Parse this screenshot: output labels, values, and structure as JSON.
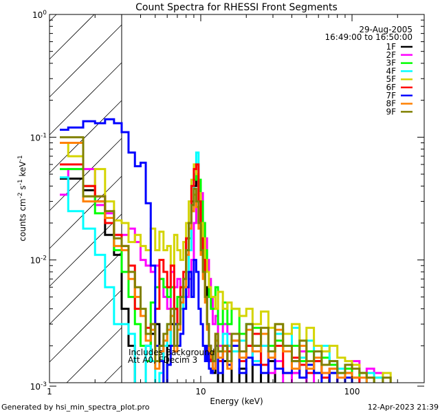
{
  "chart_data": {
    "type": "line",
    "title": "Count Spectra for RHESSI Front Segments",
    "xlabel": "Energy (keV)",
    "ylabel": {
      "base": "counts cm",
      "e1": "-2",
      "mid": " s",
      "e2": "-1",
      "unit": " keV",
      "e3": "-1"
    },
    "xscale": "log",
    "yscale": "log",
    "xlim": [
      1,
      300
    ],
    "ylim": [
      0.001,
      1
    ],
    "x_ticks": [
      {
        "value": 1,
        "label": "1"
      },
      {
        "value": 10,
        "label": "10"
      },
      {
        "value": 100,
        "label": "100"
      }
    ],
    "y_ticks": [
      {
        "value": 1,
        "base": "10",
        "exp": "0"
      },
      {
        "value": 0.1,
        "base": "10",
        "exp": "-1"
      },
      {
        "value": 0.01,
        "base": "10",
        "exp": "-2"
      },
      {
        "value": 0.001,
        "base": "10",
        "exp": "-3"
      }
    ],
    "hatched_region_keV": [
      1,
      3
    ],
    "date": "29-Aug-2005",
    "time_range": "16:49:00 to 16:50:00",
    "annotations": [
      "Includes Background",
      "Att A0, FDecim 3"
    ],
    "legend_placement": "top-right",
    "energy_edges": [
      1.17,
      1.33,
      1.67,
      2,
      2.33,
      2.67,
      3,
      3.33,
      3.67,
      4,
      4.33,
      4.67,
      5,
      5.33,
      5.67,
      6,
      6.33,
      6.67,
      7,
      7.33,
      7.67,
      8,
      8.33,
      8.67,
      9,
      9.33,
      9.67,
      10,
      10.33,
      10.67,
      11,
      11.33,
      11.67,
      12,
      12.5,
      13,
      14,
      15,
      16,
      18,
      20,
      22,
      25,
      28,
      31,
      35,
      40,
      45,
      50,
      56,
      63,
      71,
      80,
      90,
      100,
      112,
      125,
      140,
      160,
      180,
      200
    ],
    "series": [
      {
        "name": "1F",
        "color": "#000000",
        "values": [
          0.046,
          0.046,
          0.037,
          0.03,
          0.016,
          0.011,
          0.004,
          0.002,
          0,
          0.001,
          0.002,
          0.0025,
          0.003,
          0.002,
          0.001,
          0.002,
          0.003,
          0.004,
          0.003,
          0.005,
          0.007,
          0.015,
          0.02,
          0.03,
          0.04,
          0.05,
          0.04,
          0.02,
          0.01,
          0.006,
          0.003,
          0.002,
          0.0015,
          0.0012,
          0.002,
          0.001,
          0.0015,
          0.002,
          0.001,
          0.0013,
          0,
          0.002,
          0.001,
          0.0015,
          0.001,
          0,
          0.0012,
          0.0018,
          0,
          0.001,
          0,
          0.0012,
          0,
          0.001,
          0,
          0,
          0,
          0,
          0,
          0
        ]
      },
      {
        "name": "2F",
        "color": "#ff00ff",
        "values": [
          0.034,
          0.055,
          0.055,
          0.028,
          0.024,
          0.016,
          0.016,
          0.018,
          0.014,
          0.01,
          0.009,
          0.008,
          0.009,
          0.007,
          0.005,
          0.004,
          0.008,
          0.006,
          0.007,
          0.006,
          0.005,
          0.005,
          0.007,
          0.01,
          0.02,
          0.03,
          0.04,
          0.035,
          0.02,
          0.015,
          0.01,
          0.007,
          0.005,
          0.003,
          0.0035,
          0.002,
          0.003,
          0.0025,
          0.002,
          0.0018,
          0.002,
          0.0015,
          0.002,
          0.0012,
          0.0015,
          0.001,
          0.0012,
          0.0018,
          0.001,
          0.0015,
          0.0012,
          0.0013,
          0.001,
          0.0012,
          0.0015,
          0.001,
          0.0013,
          0.0012,
          0.001,
          0
        ]
      },
      {
        "name": "3F",
        "color": "#00ff00",
        "values": [
          0.055,
          0.055,
          0.04,
          0.024,
          0.02,
          0.012,
          0.008,
          0.005,
          0.003,
          0.002,
          0.0015,
          0.0045,
          0.006,
          0.007,
          0.006,
          0.005,
          0.006,
          0.004,
          0.005,
          0.004,
          0.006,
          0.008,
          0.015,
          0.025,
          0.045,
          0.05,
          0.045,
          0.03,
          0.02,
          0.012,
          0.008,
          0.005,
          0.004,
          0.004,
          0.006,
          0.003,
          0.0045,
          0.003,
          0.004,
          0.0025,
          0.003,
          0.0028,
          0.0025,
          0.002,
          0.0022,
          0.0018,
          0.002,
          0.0015,
          0.0018,
          0.0012,
          0.0016,
          0.0014,
          0.0012,
          0.0013,
          0.0011,
          0.0012,
          0.001,
          0.0011,
          0.001,
          0
        ]
      },
      {
        "name": "4F",
        "color": "#00ffff",
        "values": [
          0.047,
          0.025,
          0.018,
          0.011,
          0.006,
          0.003,
          0.003,
          0.0025,
          0,
          0.001,
          0.002,
          0.0015,
          0.001,
          0.0012,
          0.002,
          0.003,
          0.002,
          0.003,
          0.003,
          0.004,
          0.005,
          0.008,
          0.012,
          0.025,
          0.05,
          0.075,
          0.035,
          0.015,
          0.008,
          0.005,
          0.003,
          0.002,
          0.0015,
          0.0018,
          0.002,
          0.0015,
          0.0025,
          0.002,
          0.0018,
          0.0022,
          0.003,
          0.0015,
          0.002,
          0.0018,
          0.0025,
          0.002,
          0.0028,
          0.0016,
          0.0022,
          0.0015,
          0.002,
          0.0015,
          0.0013,
          0.0012,
          0.0011,
          0.001,
          0.0012,
          0.0011,
          0.001,
          0
        ]
      },
      {
        "name": "5F",
        "color": "#d4d400",
        "values": [
          0.09,
          0.07,
          0.033,
          0.055,
          0.03,
          0.021,
          0.02,
          0.014,
          0.016,
          0.013,
          0.012,
          0.018,
          0.012,
          0.017,
          0.012,
          0.013,
          0.009,
          0.016,
          0.012,
          0.01,
          0.014,
          0.02,
          0.03,
          0.045,
          0.06,
          0.05,
          0.035,
          0.02,
          0.015,
          0.01,
          0.008,
          0.006,
          0.005,
          0.005,
          0.004,
          0.0055,
          0.004,
          0.0045,
          0.004,
          0.0035,
          0.004,
          0.003,
          0.0038,
          0.0028,
          0.003,
          0.0025,
          0.003,
          0.0022,
          0.0028,
          0.002,
          0.0018,
          0.002,
          0.0016,
          0.0015,
          0.0014,
          0.0012,
          0.0011,
          0.001,
          0.0012,
          0
        ]
      },
      {
        "name": "6F",
        "color": "#ff0000",
        "values": [
          0.06,
          0.06,
          0.04,
          0.033,
          0.02,
          0.016,
          0.013,
          0.009,
          0.004,
          0.0035,
          0.0028,
          0.003,
          0.004,
          0.01,
          0.008,
          0.006,
          0.009,
          0.004,
          0.003,
          0.006,
          0.008,
          0.015,
          0.02,
          0.04,
          0.055,
          0.06,
          0.03,
          0.015,
          0.01,
          0.005,
          0.003,
          0.002,
          0.0015,
          0.0018,
          0.0025,
          0.0015,
          0.002,
          0.0018,
          0.0022,
          0.0015,
          0.002,
          0.0025,
          0.0014,
          0.0018,
          0.002,
          0.0012,
          0.0016,
          0.0014,
          0.0012,
          0.0015,
          0.0011,
          0.0013,
          0.001,
          0.0012,
          0.0011,
          0.001,
          0,
          0,
          0,
          0
        ]
      },
      {
        "name": "7F",
        "color": "#0000ff",
        "values": [
          0.115,
          0.12,
          0.135,
          0.13,
          0.14,
          0.13,
          0.11,
          0.075,
          0.058,
          0.062,
          0.029,
          0.009,
          0.002,
          0.0015,
          0,
          0.0014,
          0.002,
          0.003,
          0.002,
          0.0025,
          0.004,
          0.006,
          0.008,
          0.005,
          0.01,
          0.008,
          0.004,
          0.003,
          0.002,
          0.0015,
          0.002,
          0.0013,
          0.0012,
          0.0015,
          0.002,
          0.0012,
          0.0018,
          0.0014,
          0.002,
          0.0012,
          0.0016,
          0.0014,
          0.0012,
          0.0018,
          0.0013,
          0.0012,
          0.0015,
          0.0011,
          0.0014,
          0.0012,
          0.001,
          0.0012,
          0.001,
          0.0011,
          0,
          0,
          0,
          0,
          0,
          0
        ]
      },
      {
        "name": "8F",
        "color": "#ff8000",
        "values": [
          0.09,
          0.09,
          0.03,
          0.03,
          0.022,
          0.013,
          0.012,
          0.007,
          0.005,
          0.0035,
          0.0022,
          0.0027,
          0.0013,
          0.0018,
          0.0022,
          0.0027,
          0.0035,
          0.0018,
          0.0027,
          0.0045,
          0.006,
          0.011,
          0.018,
          0.025,
          0.034,
          0.027,
          0.018,
          0.011,
          0.007,
          0.0045,
          0.0027,
          0.0018,
          0.0016,
          0.0013,
          0.0022,
          0.0016,
          0.0018,
          0.0013,
          0.0022,
          0.0016,
          0.0027,
          0.0018,
          0.0025,
          0.0016,
          0.0027,
          0.0018,
          0.0013,
          0.002,
          0.0013,
          0.0016,
          0.0012,
          0.0013,
          0.0011,
          0.0012,
          0.0011,
          0.0011,
          0.001,
          0,
          0,
          0
        ]
      },
      {
        "name": "9F",
        "color": "#808000",
        "values": [
          0.1,
          0.1,
          0.033,
          0.033,
          0.025,
          0.015,
          0.013,
          0.008,
          0.006,
          0.004,
          0.0025,
          0.003,
          0.0015,
          0.002,
          0.0025,
          0.003,
          0.004,
          0.002,
          0.003,
          0.005,
          0.007,
          0.012,
          0.02,
          0.028,
          0.038,
          0.03,
          0.02,
          0.012,
          0.008,
          0.005,
          0.003,
          0.002,
          0.0018,
          0.0015,
          0.0025,
          0.0018,
          0.002,
          0.0015,
          0.0025,
          0.0018,
          0.003,
          0.002,
          0.0028,
          0.0018,
          0.003,
          0.002,
          0.0015,
          0.0022,
          0.0015,
          0.0018,
          0.0014,
          0.0015,
          0.0012,
          0.0014,
          0.0013,
          0.0012,
          0.0011,
          0.001,
          0.0011,
          0
        ]
      }
    ]
  },
  "footer": {
    "generated_by": "Generated by hsi_min_spectra_plot.pro",
    "timestamp": "12-Apr-2023 21:39"
  }
}
